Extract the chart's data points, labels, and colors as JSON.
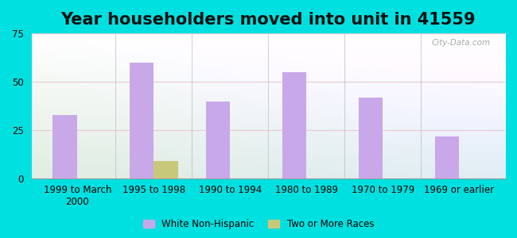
{
  "title": "Year householders moved into unit in 41559",
  "categories": [
    "1999 to March\n2000",
    "1995 to 1998",
    "1990 to 1994",
    "1980 to 1989",
    "1970 to 1979",
    "1969 or earlier"
  ],
  "white_values": [
    33,
    60,
    40,
    55,
    42,
    22
  ],
  "other_values": [
    0,
    9,
    0,
    0,
    0,
    0
  ],
  "white_color": "#c8a8e8",
  "other_color": "#c8c87a",
  "ylim": [
    0,
    75
  ],
  "yticks": [
    0,
    25,
    50,
    75
  ],
  "bg_outer": "#00e0e0",
  "bg_plot_top": "#eaf5f0",
  "bg_plot_bottom": "#d0ead8",
  "bar_width": 0.32,
  "legend_labels": [
    "White Non-Hispanic",
    "Two or More Races"
  ],
  "title_fontsize": 15,
  "tick_fontsize": 8.5,
  "watermark": "City-Data.com"
}
